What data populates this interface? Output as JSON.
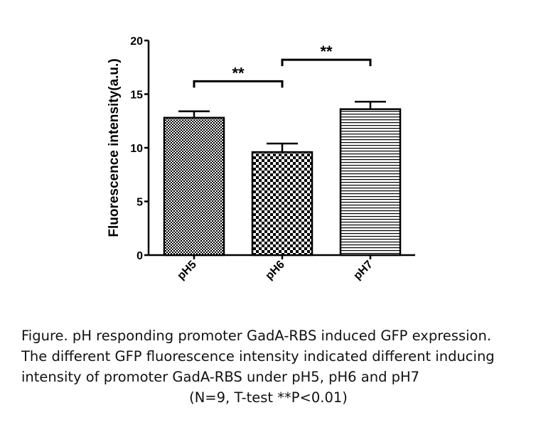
{
  "chart_data": {
    "type": "bar",
    "categories": [
      "pH5",
      "pH6",
      "pH7"
    ],
    "values": [
      12.8,
      9.6,
      13.6
    ],
    "errors": [
      0.6,
      0.8,
      0.7
    ],
    "patterns": [
      "fine-dots",
      "checker",
      "horizontal-lines"
    ],
    "ylabel": "Fluorescence intensity(a.u.)",
    "xlabel": "",
    "ylim": [
      0,
      20
    ],
    "yticks": [
      0,
      5,
      10,
      15,
      20
    ],
    "grid": false,
    "significance": [
      {
        "from": "pH5",
        "to": "pH6",
        "label": "**",
        "height": 16.2
      },
      {
        "from": "pH6",
        "to": "pH7",
        "label": "**",
        "height": 18.2
      }
    ]
  },
  "caption": {
    "line1": "Figure. pH responding promoter GadA-RBS induced GFP expression.",
    "line2": "The different GFP fluorescence intensity indicated different inducing",
    "line3": "intensity of promoter GadA-RBS under pH5, pH6 and pH7",
    "line4": "(N=9, T-test **P<0.01)"
  }
}
